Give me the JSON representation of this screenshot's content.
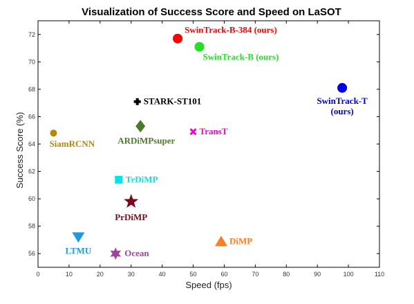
{
  "chart_data": {
    "type": "scatter",
    "title": "Visualization of Success Score and Speed on LaSOT",
    "xlabel": "Speed (fps)",
    "ylabel": "Success Score (%)",
    "xlim": [
      0,
      110
    ],
    "ylim": [
      55,
      73
    ],
    "xticks": [
      0,
      10,
      20,
      30,
      40,
      50,
      60,
      70,
      80,
      90,
      100,
      110
    ],
    "yticks": [
      56,
      58,
      60,
      62,
      64,
      66,
      68,
      70,
      72
    ],
    "grid": false,
    "points": [
      {
        "name": "SwinTrack-B-384 (ours)",
        "x": 45,
        "y": 71.7,
        "color": "#ff0000",
        "marker": "circle",
        "label_lines": [
          "SwinTrack-B-384 (ours)"
        ],
        "label_anchor": "above-right"
      },
      {
        "name": "SwinTrack-B (ours)",
        "x": 52,
        "y": 71.1,
        "color": "#22e022",
        "marker": "circle",
        "label_lines": [
          "SwinTrack-B (ours)"
        ],
        "label_anchor": "below-right"
      },
      {
        "name": "SwinTrack-T (ours)",
        "x": 98,
        "y": 68.1,
        "color": "#0000ee",
        "marker": "circle",
        "label_lines": [
          "SwinTrack-T",
          "(ours)"
        ],
        "label_anchor": "below"
      },
      {
        "name": "STARK-ST101",
        "x": 32,
        "y": 67.1,
        "color": "#000000",
        "marker": "plus",
        "label_lines": [
          "STARK-ST101"
        ],
        "label_anchor": "right"
      },
      {
        "name": "ARDiMPsuper",
        "x": 33,
        "y": 65.3,
        "color": "#4a7a2a",
        "marker": "diamond",
        "label_lines": [
          "ARDiMPsuper"
        ],
        "label_anchor": "below-left"
      },
      {
        "name": "TransT",
        "x": 50,
        "y": 64.9,
        "color": "#ff00cc",
        "marker": "x",
        "label_lines": [
          "TransT"
        ],
        "label_anchor": "right"
      },
      {
        "name": "SiamRCNN",
        "x": 5,
        "y": 64.8,
        "color": "#b8860b",
        "marker": "circle-small",
        "label_lines": [
          "SiamRCNN"
        ],
        "label_anchor": "below-right"
      },
      {
        "name": "TrDiMP",
        "x": 26,
        "y": 61.4,
        "color": "#00e5e5",
        "marker": "square",
        "label_lines": [
          "TrDiMP"
        ],
        "label_anchor": "right"
      },
      {
        "name": "PrDiMP",
        "x": 30,
        "y": 59.8,
        "color": "#7a0a1a",
        "marker": "star5",
        "label_lines": [
          "PrDiMP"
        ],
        "label_anchor": "below"
      },
      {
        "name": "LTMU",
        "x": 13,
        "y": 57.2,
        "color": "#1e9be0",
        "marker": "triangle-down",
        "label_lines": [
          "LTMU"
        ],
        "label_anchor": "below"
      },
      {
        "name": "Ocean",
        "x": 25,
        "y": 56.0,
        "color": "#a040a0",
        "marker": "star6",
        "label_lines": [
          "Ocean"
        ],
        "label_anchor": "right"
      },
      {
        "name": "DiMP",
        "x": 59,
        "y": 56.9,
        "color": "#ff7f20",
        "marker": "triangle-up",
        "label_lines": [
          "DiMP"
        ],
        "label_anchor": "right"
      }
    ]
  }
}
